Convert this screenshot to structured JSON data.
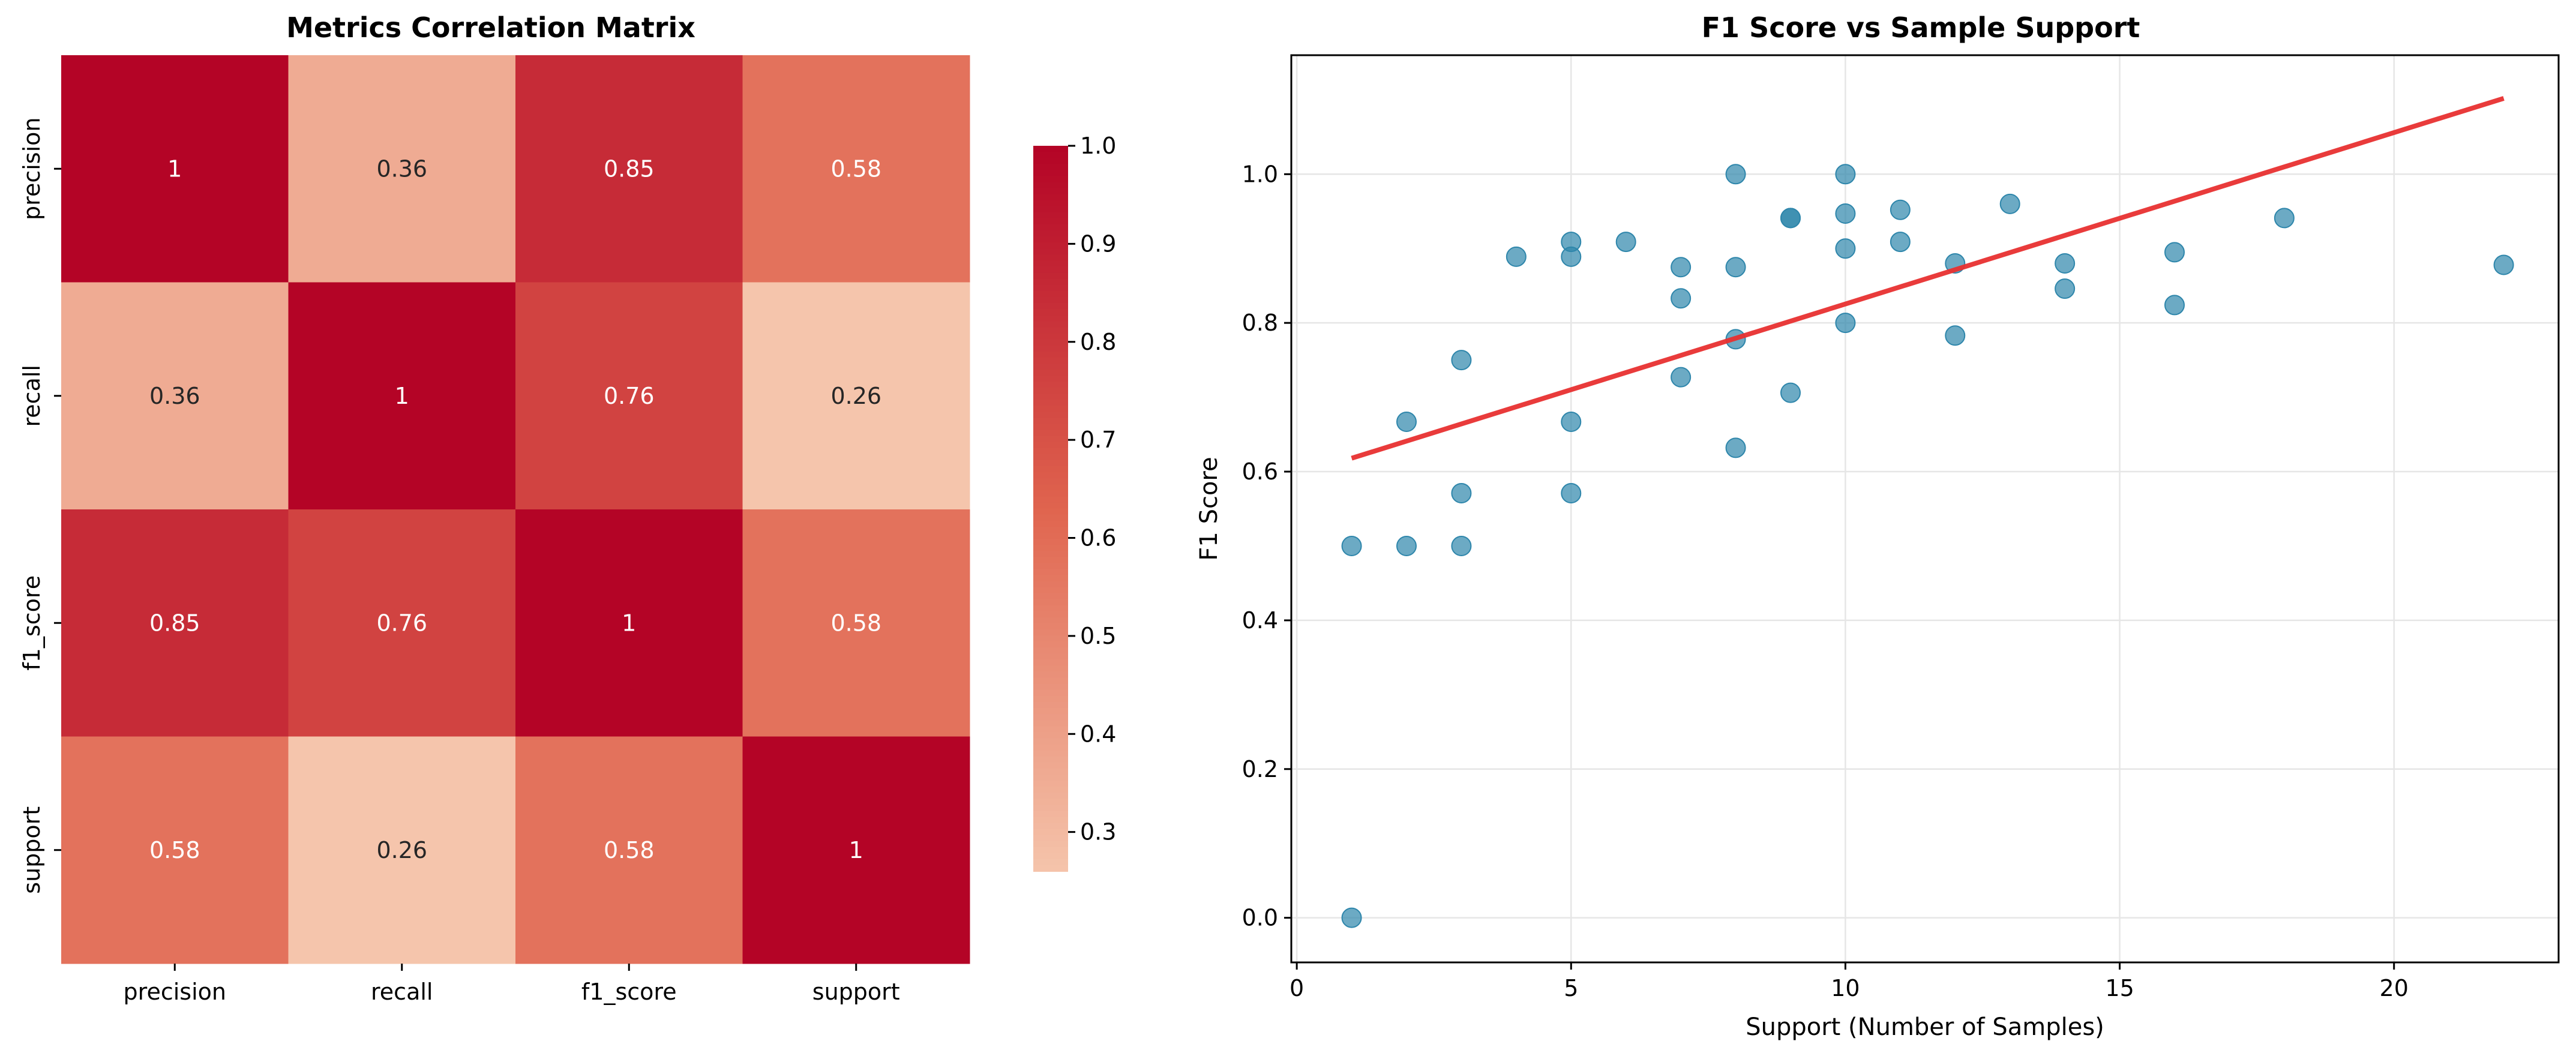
{
  "chart_data": [
    {
      "type": "heatmap",
      "title": "Metrics Correlation Matrix",
      "row_labels": [
        "precision",
        "recall",
        "f1_score",
        "support"
      ],
      "col_labels": [
        "precision",
        "recall",
        "f1_score",
        "support"
      ],
      "values": [
        [
          1,
          0.36,
          0.85,
          0.58
        ],
        [
          0.36,
          1,
          0.76,
          0.26
        ],
        [
          0.85,
          0.76,
          1,
          0.58
        ],
        [
          0.58,
          0.26,
          0.58,
          1
        ]
      ],
      "cell_labels": [
        [
          "1",
          "0.36",
          "0.85",
          "0.58"
        ],
        [
          "0.36",
          "1",
          "0.76",
          "0.26"
        ],
        [
          "0.85",
          "0.76",
          "1",
          "0.58"
        ],
        [
          "0.58",
          "0.26",
          "0.58",
          "1"
        ]
      ],
      "colormap": "red",
      "vmin": 0.26,
      "vmax": 1.0,
      "colorbar_ticks": [
        "0.3",
        "0.4",
        "0.5",
        "0.6",
        "0.7",
        "0.8",
        "0.9",
        "1.0"
      ],
      "colors": {
        "low": "#f5c5ac",
        "mid": "#e0654f",
        "high": "#b40426",
        "label_dark": "#262626",
        "label_light": "#ffffff"
      }
    },
    {
      "type": "scatter",
      "title": "F1 Score vs Sample Support",
      "xlabel": "Support (Number of Samples)",
      "ylabel": "F1 Score",
      "xlim": [
        -0.1,
        23.0
      ],
      "ylim": [
        -0.06,
        1.16
      ],
      "xticks": [
        "0",
        "5",
        "10",
        "15",
        "20"
      ],
      "yticks": [
        "0.0",
        "0.2",
        "0.4",
        "0.6",
        "0.8",
        "1.0"
      ],
      "grid": true,
      "point_color": "#2e86ab",
      "trend_color": "#e83030",
      "points": [
        {
          "x": 1,
          "y": 0.0
        },
        {
          "x": 1,
          "y": 0.5
        },
        {
          "x": 2,
          "y": 0.5
        },
        {
          "x": 2,
          "y": 0.667
        },
        {
          "x": 3,
          "y": 0.5
        },
        {
          "x": 3,
          "y": 0.571
        },
        {
          "x": 3,
          "y": 0.75
        },
        {
          "x": 4,
          "y": 0.889
        },
        {
          "x": 5,
          "y": 0.571
        },
        {
          "x": 5,
          "y": 0.667
        },
        {
          "x": 5,
          "y": 0.889
        },
        {
          "x": 5,
          "y": 0.909
        },
        {
          "x": 6,
          "y": 0.909
        },
        {
          "x": 7,
          "y": 0.727
        },
        {
          "x": 7,
          "y": 0.833
        },
        {
          "x": 7,
          "y": 0.875
        },
        {
          "x": 8,
          "y": 0.632
        },
        {
          "x": 8,
          "y": 0.778
        },
        {
          "x": 8,
          "y": 0.875
        },
        {
          "x": 8,
          "y": 1.0
        },
        {
          "x": 9,
          "y": 0.706
        },
        {
          "x": 9,
          "y": 0.941
        },
        {
          "x": 9,
          "y": 0.941
        },
        {
          "x": 10,
          "y": 0.8
        },
        {
          "x": 10,
          "y": 0.9
        },
        {
          "x": 10,
          "y": 0.947
        },
        {
          "x": 10,
          "y": 1.0
        },
        {
          "x": 11,
          "y": 0.909
        },
        {
          "x": 11,
          "y": 0.952
        },
        {
          "x": 12,
          "y": 0.783
        },
        {
          "x": 12,
          "y": 0.88
        },
        {
          "x": 13,
          "y": 0.96
        },
        {
          "x": 14,
          "y": 0.846
        },
        {
          "x": 14,
          "y": 0.88
        },
        {
          "x": 16,
          "y": 0.824
        },
        {
          "x": 16,
          "y": 0.895
        },
        {
          "x": 18,
          "y": 0.941
        },
        {
          "x": 22,
          "y": 0.878
        }
      ],
      "trend_line": {
        "x": [
          1,
          22
        ],
        "y": [
          0.618,
          1.102
        ]
      }
    }
  ]
}
